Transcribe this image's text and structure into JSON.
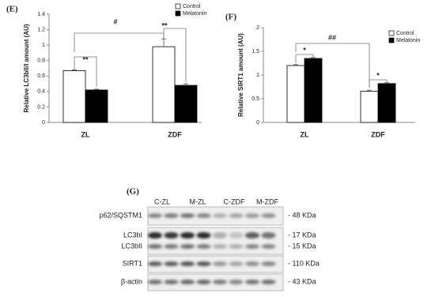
{
  "chart_data": [
    {
      "type": "bar",
      "panel": "(E)",
      "ylabel": "Relative LC3bII/I amount (AU)",
      "categories": [
        "ZL",
        "ZDF"
      ],
      "series": [
        {
          "name": "Control",
          "color": "#ffffff",
          "values": [
            0.67,
            0.98
          ],
          "errors": [
            0.01,
            0.1
          ]
        },
        {
          "name": "Melatonin",
          "color": "#000000",
          "values": [
            0.42,
            0.48
          ],
          "errors": [
            0.01,
            0.02
          ]
        }
      ],
      "ylim": [
        0,
        1.4
      ],
      "yticks": [
        0,
        0.2,
        0.4,
        0.6,
        0.8,
        1,
        1.2,
        1.4
      ],
      "annotations": [
        "**",
        "#",
        "**"
      ]
    },
    {
      "type": "bar",
      "panel": "(F)",
      "ylabel": "Relative SIRT1 amount (AU)",
      "categories": [
        "ZL",
        "ZDF"
      ],
      "series": [
        {
          "name": "Control",
          "color": "#ffffff",
          "values": [
            1.2,
            0.66
          ],
          "errors": [
            0.02,
            0.02
          ]
        },
        {
          "name": "Melatonin",
          "color": "#000000",
          "values": [
            1.35,
            0.82
          ],
          "errors": [
            0.02,
            0.02
          ]
        }
      ],
      "ylim": [
        0,
        2
      ],
      "yticks": [
        0,
        0.5,
        1,
        1.5,
        2
      ],
      "annotations": [
        "*",
        "##",
        "*"
      ]
    }
  ],
  "blot": {
    "panel": "(G)",
    "lanes": [
      "C-ZL",
      "M-ZL",
      "C-ZDF",
      "M-ZDF"
    ],
    "rows": [
      {
        "name": "p62/SQSTM1",
        "size": "- 48 KDa"
      },
      {
        "name": "LC3bI",
        "size": "- 17 KDa"
      },
      {
        "name": "LC3bII",
        "size": "- 15 KDa"
      },
      {
        "name": "SIRT1",
        "size": "- 110 KDa"
      },
      {
        "name": "β-actin",
        "size": "- 43 KDa"
      }
    ]
  }
}
